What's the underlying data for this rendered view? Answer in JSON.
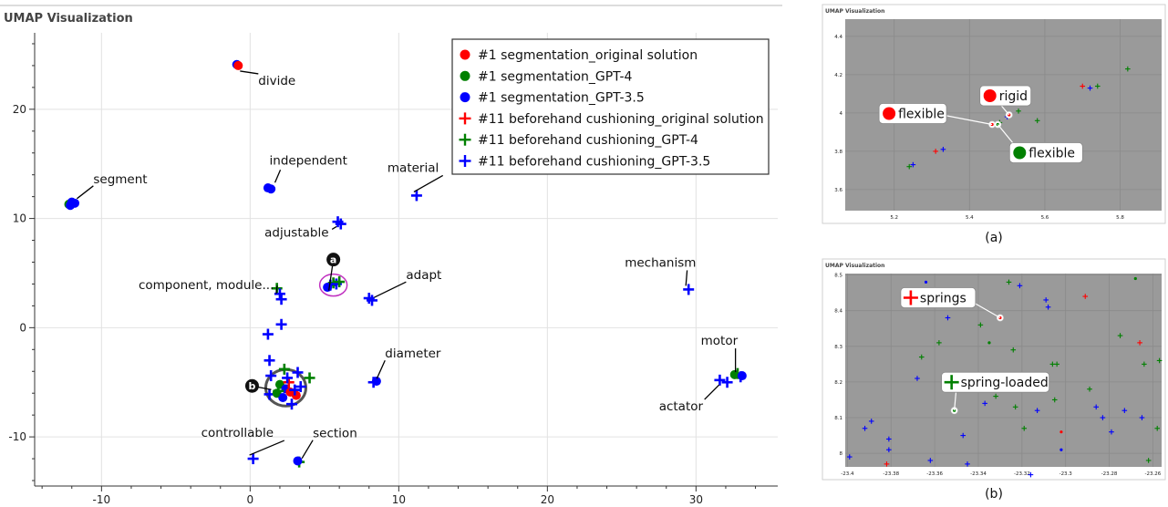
{
  "chart_data": [
    {
      "type": "scatter",
      "title": "UMAP Visualization",
      "xlabel": "",
      "ylabel": "",
      "xlim": [
        -14.5,
        35.5
      ],
      "ylim": [
        -14.5,
        27.0
      ],
      "x_ticks": [
        -10,
        0,
        10,
        20,
        30
      ],
      "y_ticks": [
        -10,
        0,
        10,
        20
      ],
      "grid": true,
      "legend_position": "top-right",
      "series": [
        {
          "name": "#1 segmentation_original solution",
          "marker": "circle",
          "color": "#ff0000"
        },
        {
          "name": "#1 segmentation_GPT-4",
          "marker": "circle",
          "color": "#008000"
        },
        {
          "name": "#1 segmentation_GPT-3.5",
          "marker": "circle",
          "color": "#0000ff"
        },
        {
          "name": "#11 beforehand cushioning_original solution",
          "marker": "cross",
          "color": "#ff0000"
        },
        {
          "name": "#11 beforehand cushioning_GPT-4",
          "marker": "cross",
          "color": "#008000"
        },
        {
          "name": "#11 beforehand cushioning_GPT-3.5",
          "marker": "cross",
          "color": "#0000ff"
        }
      ],
      "points": [
        {
          "x": -0.9,
          "y": 24.1,
          "marker": "circle",
          "color": "#0000ff"
        },
        {
          "x": -0.8,
          "y": 24.0,
          "marker": "circle",
          "color": "#ff0000"
        },
        {
          "x": -12.2,
          "y": 11.3,
          "marker": "circle",
          "color": "#008000"
        },
        {
          "x": -12.0,
          "y": 11.5,
          "marker": "circle",
          "color": "#0000ff"
        },
        {
          "x": -11.8,
          "y": 11.4,
          "marker": "circle",
          "color": "#0000ff"
        },
        {
          "x": -12.1,
          "y": 11.2,
          "marker": "circle",
          "color": "#0000ff"
        },
        {
          "x": 1.2,
          "y": 12.8,
          "marker": "circle",
          "color": "#0000ff"
        },
        {
          "x": 1.4,
          "y": 12.7,
          "marker": "circle",
          "color": "#0000ff"
        },
        {
          "x": 11.2,
          "y": 12.1,
          "marker": "cross",
          "color": "#0000ff"
        },
        {
          "x": 5.9,
          "y": 9.7,
          "marker": "cross",
          "color": "#0000ff"
        },
        {
          "x": 6.1,
          "y": 9.5,
          "marker": "cross",
          "color": "#0000ff"
        },
        {
          "x": 5.4,
          "y": 3.9,
          "marker": "cross",
          "color": "#0000ff"
        },
        {
          "x": 5.6,
          "y": 4.1,
          "marker": "cross",
          "color": "#008000"
        },
        {
          "x": 5.8,
          "y": 4.0,
          "marker": "cross",
          "color": "#0000ff"
        },
        {
          "x": 6.0,
          "y": 4.2,
          "marker": "cross",
          "color": "#008000"
        },
        {
          "x": 5.2,
          "y": 3.7,
          "marker": "circle",
          "color": "#0000ff"
        },
        {
          "x": 8.0,
          "y": 2.7,
          "marker": "cross",
          "color": "#0000ff"
        },
        {
          "x": 8.2,
          "y": 2.5,
          "marker": "cross",
          "color": "#0000ff"
        },
        {
          "x": 1.8,
          "y": 3.6,
          "marker": "cross",
          "color": "#008000"
        },
        {
          "x": 2.0,
          "y": 3.1,
          "marker": "cross",
          "color": "#0000ff"
        },
        {
          "x": 2.1,
          "y": 2.6,
          "marker": "cross",
          "color": "#0000ff"
        },
        {
          "x": 29.5,
          "y": 3.5,
          "marker": "cross",
          "color": "#0000ff"
        },
        {
          "x": 1.2,
          "y": -0.6,
          "marker": "cross",
          "color": "#0000ff"
        },
        {
          "x": 2.1,
          "y": 0.3,
          "marker": "cross",
          "color": "#0000ff"
        },
        {
          "x": 1.3,
          "y": -3.0,
          "marker": "cross",
          "color": "#0000ff"
        },
        {
          "x": 1.4,
          "y": -4.4,
          "marker": "cross",
          "color": "#0000ff"
        },
        {
          "x": 1.3,
          "y": -6.1,
          "marker": "cross",
          "color": "#0000ff"
        },
        {
          "x": 2.3,
          "y": -3.8,
          "marker": "cross",
          "color": "#008000"
        },
        {
          "x": 3.2,
          "y": -4.1,
          "marker": "cross",
          "color": "#0000ff"
        },
        {
          "x": 4.0,
          "y": -4.6,
          "marker": "cross",
          "color": "#008000"
        },
        {
          "x": 2.8,
          "y": -7.0,
          "marker": "cross",
          "color": "#0000ff"
        },
        {
          "x": 2.0,
          "y": -5.2,
          "marker": "circle",
          "color": "#008000"
        },
        {
          "x": 2.4,
          "y": -5.6,
          "marker": "circle",
          "color": "#0000ff"
        },
        {
          "x": 2.7,
          "y": -5.9,
          "marker": "circle",
          "color": "#ff0000"
        },
        {
          "x": 3.1,
          "y": -6.2,
          "marker": "circle",
          "color": "#ff0000"
        },
        {
          "x": 1.8,
          "y": -6.0,
          "marker": "circle",
          "color": "#008000"
        },
        {
          "x": 2.2,
          "y": -6.4,
          "marker": "circle",
          "color": "#0000ff"
        },
        {
          "x": 3.4,
          "y": -5.4,
          "marker": "cross",
          "color": "#0000ff"
        },
        {
          "x": 2.6,
          "y": -5.0,
          "marker": "cross",
          "color": "#ff0000"
        },
        {
          "x": 1.9,
          "y": -5.8,
          "marker": "cross",
          "color": "#008000"
        },
        {
          "x": 3.0,
          "y": -5.7,
          "marker": "cross",
          "color": "#0000ff"
        },
        {
          "x": 2.5,
          "y": -4.6,
          "marker": "cross",
          "color": "#0000ff"
        },
        {
          "x": 8.3,
          "y": -5.0,
          "marker": "cross",
          "color": "#0000ff"
        },
        {
          "x": 8.5,
          "y": -4.9,
          "marker": "circle",
          "color": "#0000ff"
        },
        {
          "x": 32.8,
          "y": -4.2,
          "marker": "cross",
          "color": "#008000"
        },
        {
          "x": 33.0,
          "y": -4.5,
          "marker": "cross",
          "color": "#0000ff"
        },
        {
          "x": 32.6,
          "y": -4.3,
          "marker": "circle",
          "color": "#008000"
        },
        {
          "x": 33.1,
          "y": -4.4,
          "marker": "circle",
          "color": "#0000ff"
        },
        {
          "x": 31.6,
          "y": -4.8,
          "marker": "cross",
          "color": "#0000ff"
        },
        {
          "x": 32.1,
          "y": -5.0,
          "marker": "cross",
          "color": "#0000ff"
        },
        {
          "x": 0.2,
          "y": -12.0,
          "marker": "cross",
          "color": "#0000ff"
        },
        {
          "x": 3.3,
          "y": -12.3,
          "marker": "cross",
          "color": "#008000"
        },
        {
          "x": 3.2,
          "y": -12.2,
          "marker": "circle",
          "color": "#0000ff"
        }
      ],
      "annotations": [
        {
          "text": "divide",
          "x": -0.8,
          "y": 24.0
        },
        {
          "text": "segment",
          "x": -11.9,
          "y": 11.4
        },
        {
          "text": "independent",
          "x": 1.3,
          "y": 12.7
        },
        {
          "text": "material",
          "x": 11.2,
          "y": 12.1
        },
        {
          "text": "adjustable",
          "x": 6.0,
          "y": 9.6
        },
        {
          "text": "component, module...",
          "x": 2.0,
          "y": 3.1
        },
        {
          "text": "adapt",
          "x": 8.1,
          "y": 2.6
        },
        {
          "text": "mechanism",
          "x": 29.5,
          "y": 3.5
        },
        {
          "text": "motor",
          "x": 32.9,
          "y": -4.4
        },
        {
          "text": "diameter",
          "x": 8.4,
          "y": -5.0
        },
        {
          "text": "actator",
          "x": 31.8,
          "y": -4.9
        },
        {
          "text": "controllable",
          "x": 0.2,
          "y": -12.0
        },
        {
          "text": "section",
          "x": 3.3,
          "y": -12.3
        }
      ],
      "callouts": [
        {
          "label": "a",
          "x": 5.6,
          "y": 3.9
        },
        {
          "label": "b",
          "x": 2.4,
          "y": -5.5
        }
      ]
    },
    {
      "type": "scatter",
      "title": "UMAP Visualization",
      "caption": "(a)",
      "xlim": [
        5.07,
        5.91
      ],
      "ylim": [
        3.49,
        4.49
      ],
      "x_ticks": [
        5.2,
        5.4,
        5.6,
        5.8
      ],
      "x_tick_labels": [
        "5.2",
        "5.4",
        "5.6",
        "5.8"
      ],
      "y_ticks": [
        3.6,
        3.8,
        4.0,
        4.2,
        4.4
      ],
      "y_tick_labels": [
        "3.6",
        "3.8",
        "4",
        "4.2",
        "4.4"
      ],
      "grid": true,
      "points": [
        {
          "x": 5.24,
          "y": 3.72,
          "marker": "cross",
          "color": "#008000"
        },
        {
          "x": 5.25,
          "y": 3.73,
          "marker": "cross",
          "color": "#0000ff"
        },
        {
          "x": 5.31,
          "y": 3.8,
          "marker": "cross",
          "color": "#ff0000"
        },
        {
          "x": 5.33,
          "y": 3.81,
          "marker": "cross",
          "color": "#0000ff"
        },
        {
          "x": 5.46,
          "y": 3.94,
          "marker": "cross",
          "color": "#ff0000"
        },
        {
          "x": 5.48,
          "y": 3.95,
          "marker": "cross",
          "color": "#008000"
        },
        {
          "x": 5.5,
          "y": 3.98,
          "marker": "cross",
          "color": "#0000ff"
        },
        {
          "x": 5.53,
          "y": 4.01,
          "marker": "cross",
          "color": "#008000"
        },
        {
          "x": 5.58,
          "y": 3.96,
          "marker": "cross",
          "color": "#008000"
        },
        {
          "x": 5.7,
          "y": 4.14,
          "marker": "cross",
          "color": "#ff0000"
        },
        {
          "x": 5.72,
          "y": 4.13,
          "marker": "cross",
          "color": "#0000ff"
        },
        {
          "x": 5.74,
          "y": 4.14,
          "marker": "cross",
          "color": "#008000"
        },
        {
          "x": 5.82,
          "y": 4.23,
          "marker": "cross",
          "color": "#008000"
        }
      ],
      "annotations": [
        {
          "text": "rigid",
          "color": "#ff0000",
          "marker": "circle",
          "x": 5.505,
          "y": 3.99
        },
        {
          "text": "flexible",
          "color": "#ff0000",
          "marker": "circle",
          "x": 5.46,
          "y": 3.94
        },
        {
          "text": "flexible",
          "color": "#008000",
          "marker": "circle",
          "x": 5.475,
          "y": 3.94
        }
      ]
    },
    {
      "type": "scatter",
      "title": "UMAP Visualization",
      "caption": "(b)",
      "xlim": [
        -23.401,
        -23.256
      ],
      "ylim": [
        7.962,
        8.504
      ],
      "x_ticks": [
        -23.4,
        -23.38,
        -23.36,
        -23.34,
        -23.32,
        -23.3,
        -23.28,
        -23.26
      ],
      "x_tick_labels": [
        "-23.4",
        "-23.38",
        "-23.36",
        "-23.34",
        "-23.32",
        "-23.3",
        "-23.28",
        "-23.26"
      ],
      "y_ticks": [
        8.0,
        8.1,
        8.2,
        8.3,
        8.4,
        8.5
      ],
      "y_tick_labels": [
        "8",
        "8.1",
        "8.2",
        "8.3",
        "8.4",
        "8.5"
      ],
      "grid": true,
      "points": [
        {
          "x": -23.399,
          "y": 7.99,
          "marker": "cross",
          "color": "#0000ff"
        },
        {
          "x": -23.392,
          "y": 8.07,
          "marker": "cross",
          "color": "#0000ff"
        },
        {
          "x": -23.389,
          "y": 8.09,
          "marker": "cross",
          "color": "#0000ff"
        },
        {
          "x": -23.381,
          "y": 8.04,
          "marker": "cross",
          "color": "#0000ff"
        },
        {
          "x": -23.381,
          "y": 8.01,
          "marker": "cross",
          "color": "#0000ff"
        },
        {
          "x": -23.382,
          "y": 7.97,
          "marker": "cross",
          "color": "#ff0000"
        },
        {
          "x": -23.368,
          "y": 8.21,
          "marker": "cross",
          "color": "#0000ff"
        },
        {
          "x": -23.366,
          "y": 8.27,
          "marker": "cross",
          "color": "#008000"
        },
        {
          "x": -23.364,
          "y": 8.48,
          "marker": "circle",
          "color": "#0000ff"
        },
        {
          "x": -23.362,
          "y": 7.98,
          "marker": "cross",
          "color": "#0000ff"
        },
        {
          "x": -23.358,
          "y": 8.31,
          "marker": "cross",
          "color": "#008000"
        },
        {
          "x": -23.354,
          "y": 8.38,
          "marker": "cross",
          "color": "#0000ff"
        },
        {
          "x": -23.347,
          "y": 8.05,
          "marker": "cross",
          "color": "#0000ff"
        },
        {
          "x": -23.345,
          "y": 7.97,
          "marker": "cross",
          "color": "#0000ff"
        },
        {
          "x": -23.339,
          "y": 8.36,
          "marker": "cross",
          "color": "#008000"
        },
        {
          "x": -23.337,
          "y": 8.14,
          "marker": "cross",
          "color": "#0000ff"
        },
        {
          "x": -23.335,
          "y": 8.31,
          "marker": "circle",
          "color": "#008000"
        },
        {
          "x": -23.332,
          "y": 8.16,
          "marker": "cross",
          "color": "#008000"
        },
        {
          "x": -23.326,
          "y": 8.48,
          "marker": "cross",
          "color": "#008000"
        },
        {
          "x": -23.324,
          "y": 8.29,
          "marker": "cross",
          "color": "#008000"
        },
        {
          "x": -23.323,
          "y": 8.13,
          "marker": "cross",
          "color": "#008000"
        },
        {
          "x": -23.321,
          "y": 8.47,
          "marker": "cross",
          "color": "#0000ff"
        },
        {
          "x": -23.319,
          "y": 8.07,
          "marker": "cross",
          "color": "#008000"
        },
        {
          "x": -23.316,
          "y": 7.94,
          "marker": "cross",
          "color": "#0000ff"
        },
        {
          "x": -23.313,
          "y": 8.12,
          "marker": "cross",
          "color": "#0000ff"
        },
        {
          "x": -23.309,
          "y": 8.43,
          "marker": "cross",
          "color": "#0000ff"
        },
        {
          "x": -23.308,
          "y": 8.41,
          "marker": "cross",
          "color": "#0000ff"
        },
        {
          "x": -23.306,
          "y": 8.25,
          "marker": "cross",
          "color": "#008000"
        },
        {
          "x": -23.305,
          "y": 8.15,
          "marker": "cross",
          "color": "#008000"
        },
        {
          "x": -23.304,
          "y": 8.25,
          "marker": "cross",
          "color": "#008000"
        },
        {
          "x": -23.302,
          "y": 8.06,
          "marker": "circle",
          "color": "#ff0000"
        },
        {
          "x": -23.302,
          "y": 8.01,
          "marker": "circle",
          "color": "#0000ff"
        },
        {
          "x": -23.291,
          "y": 8.44,
          "marker": "cross",
          "color": "#ff0000"
        },
        {
          "x": -23.289,
          "y": 8.18,
          "marker": "cross",
          "color": "#008000"
        },
        {
          "x": -23.286,
          "y": 8.13,
          "marker": "cross",
          "color": "#0000ff"
        },
        {
          "x": -23.283,
          "y": 8.1,
          "marker": "cross",
          "color": "#0000ff"
        },
        {
          "x": -23.279,
          "y": 8.06,
          "marker": "cross",
          "color": "#0000ff"
        },
        {
          "x": -23.275,
          "y": 8.33,
          "marker": "cross",
          "color": "#008000"
        },
        {
          "x": -23.273,
          "y": 8.12,
          "marker": "cross",
          "color": "#0000ff"
        },
        {
          "x": -23.268,
          "y": 8.49,
          "marker": "circle",
          "color": "#008000"
        },
        {
          "x": -23.266,
          "y": 8.31,
          "marker": "cross",
          "color": "#ff0000"
        },
        {
          "x": -23.265,
          "y": 8.1,
          "marker": "cross",
          "color": "#0000ff"
        },
        {
          "x": -23.264,
          "y": 8.25,
          "marker": "cross",
          "color": "#008000"
        },
        {
          "x": -23.262,
          "y": 7.98,
          "marker": "cross",
          "color": "#008000"
        },
        {
          "x": -23.258,
          "y": 8.07,
          "marker": "cross",
          "color": "#008000"
        },
        {
          "x": -23.257,
          "y": 8.26,
          "marker": "cross",
          "color": "#008000"
        }
      ],
      "annotations": [
        {
          "text": "springs",
          "color": "#ff0000",
          "marker": "cross",
          "x": -23.33,
          "y": 8.38
        },
        {
          "text": "spring-loaded",
          "color": "#008000",
          "marker": "cross",
          "x": -23.351,
          "y": 8.12
        }
      ]
    }
  ]
}
